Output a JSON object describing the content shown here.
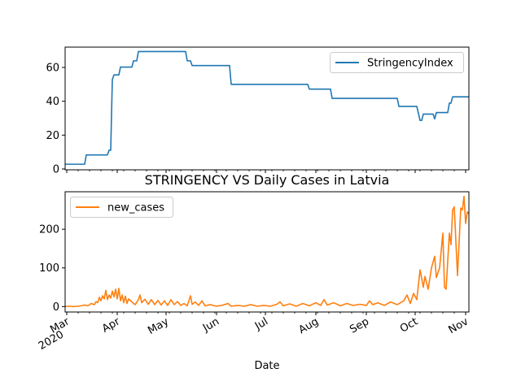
{
  "chart_data": [
    {
      "type": "line",
      "title": "",
      "xlabel": "",
      "ylabel": "",
      "xlim": [
        "2020-02-29",
        "2020-11-03"
      ],
      "ylim": [
        -0.5,
        72
      ],
      "yticks": [
        0,
        20,
        40,
        60
      ],
      "grid": false,
      "legend": "top-right",
      "series": [
        {
          "name": "StringencyIndex",
          "color": "#1f77b4",
          "points": [
            [
              "2020-02-29",
              2.8
            ],
            [
              "2020-03-12",
              2.8
            ],
            [
              "2020-03-13",
              8.3
            ],
            [
              "2020-03-26",
              8.3
            ],
            [
              "2020-03-27",
              11.1
            ],
            [
              "2020-03-28",
              11.1
            ],
            [
              "2020-03-29",
              52.8
            ],
            [
              "2020-03-30",
              55.6
            ],
            [
              "2020-04-02",
              55.6
            ],
            [
              "2020-04-03",
              60.2
            ],
            [
              "2020-04-10",
              60.2
            ],
            [
              "2020-04-11",
              63.9
            ],
            [
              "2020-04-13",
              63.9
            ],
            [
              "2020-04-14",
              69.4
            ],
            [
              "2020-05-13",
              69.4
            ],
            [
              "2020-05-14",
              63.9
            ],
            [
              "2020-05-16",
              63.9
            ],
            [
              "2020-05-17",
              61.1
            ],
            [
              "2020-06-09",
              61.1
            ],
            [
              "2020-06-10",
              50.0
            ],
            [
              "2020-07-27",
              50.0
            ],
            [
              "2020-07-28",
              47.2
            ],
            [
              "2020-08-10",
              47.2
            ],
            [
              "2020-08-11",
              41.7
            ],
            [
              "2020-09-20",
              41.7
            ],
            [
              "2020-09-21",
              37.0
            ],
            [
              "2020-10-02",
              37.0
            ],
            [
              "2020-10-04",
              28.7
            ],
            [
              "2020-10-05",
              28.7
            ],
            [
              "2020-10-06",
              32.4
            ],
            [
              "2020-10-12",
              32.4
            ],
            [
              "2020-10-13",
              29.6
            ],
            [
              "2020-10-14",
              33.3
            ],
            [
              "2020-10-21",
              33.3
            ],
            [
              "2020-10-22",
              38.9
            ],
            [
              "2020-10-23",
              38.9
            ],
            [
              "2020-10-24",
              42.6
            ],
            [
              "2020-11-03",
              42.6
            ]
          ]
        }
      ]
    },
    {
      "type": "line",
      "title": "STRINGENCY VS Daily Cases in Latvia",
      "xlabel": "Date",
      "ylabel": "",
      "xlim": [
        "2020-02-29",
        "2020-11-03"
      ],
      "ylim": [
        -14,
        297
      ],
      "yticks": [
        0,
        100,
        200
      ],
      "xticks": [
        {
          "date": "2020-03-01",
          "label": "Mar",
          "sub": "2020"
        },
        {
          "date": "2020-04-01",
          "label": "Apr"
        },
        {
          "date": "2020-05-01",
          "label": "May"
        },
        {
          "date": "2020-06-01",
          "label": "Jun"
        },
        {
          "date": "2020-07-01",
          "label": "Jul"
        },
        {
          "date": "2020-08-01",
          "label": "Aug"
        },
        {
          "date": "2020-09-01",
          "label": "Sep"
        },
        {
          "date": "2020-10-01",
          "label": "Oct"
        },
        {
          "date": "2020-11-01",
          "label": "Nov"
        }
      ],
      "grid": false,
      "legend": "top-left",
      "series": [
        {
          "name": "new_cases",
          "color": "#ff7f0e",
          "points": [
            [
              "2020-02-29",
              0
            ],
            [
              "2020-03-02",
              1
            ],
            [
              "2020-03-05",
              0
            ],
            [
              "2020-03-08",
              1
            ],
            [
              "2020-03-10",
              2
            ],
            [
              "2020-03-12",
              4
            ],
            [
              "2020-03-14",
              2
            ],
            [
              "2020-03-16",
              8
            ],
            [
              "2020-03-18",
              5
            ],
            [
              "2020-03-19",
              13
            ],
            [
              "2020-03-20",
              10
            ],
            [
              "2020-03-21",
              24
            ],
            [
              "2020-03-22",
              15
            ],
            [
              "2020-03-23",
              28
            ],
            [
              "2020-03-24",
              20
            ],
            [
              "2020-03-25",
              42
            ],
            [
              "2020-03-26",
              18
            ],
            [
              "2020-03-27",
              30
            ],
            [
              "2020-03-28",
              22
            ],
            [
              "2020-03-29",
              40
            ],
            [
              "2020-03-30",
              25
            ],
            [
              "2020-03-31",
              45
            ],
            [
              "2020-04-01",
              20
            ],
            [
              "2020-04-02",
              47
            ],
            [
              "2020-04-03",
              15
            ],
            [
              "2020-04-04",
              30
            ],
            [
              "2020-04-05",
              10
            ],
            [
              "2020-04-06",
              27
            ],
            [
              "2020-04-07",
              8
            ],
            [
              "2020-04-08",
              20
            ],
            [
              "2020-04-10",
              12
            ],
            [
              "2020-04-12",
              5
            ],
            [
              "2020-04-14",
              18
            ],
            [
              "2020-04-15",
              30
            ],
            [
              "2020-04-16",
              10
            ],
            [
              "2020-04-18",
              19
            ],
            [
              "2020-04-20",
              6
            ],
            [
              "2020-04-22",
              18
            ],
            [
              "2020-04-24",
              5
            ],
            [
              "2020-04-26",
              16
            ],
            [
              "2020-04-28",
              4
            ],
            [
              "2020-04-30",
              15
            ],
            [
              "2020-05-02",
              3
            ],
            [
              "2020-05-04",
              18
            ],
            [
              "2020-05-06",
              5
            ],
            [
              "2020-05-08",
              13
            ],
            [
              "2020-05-10",
              3
            ],
            [
              "2020-05-12",
              8
            ],
            [
              "2020-05-14",
              2
            ],
            [
              "2020-05-16",
              28
            ],
            [
              "2020-05-17",
              6
            ],
            [
              "2020-05-19",
              12
            ],
            [
              "2020-05-21",
              3
            ],
            [
              "2020-05-23",
              15
            ],
            [
              "2020-05-25",
              2
            ],
            [
              "2020-05-28",
              5
            ],
            [
              "2020-06-01",
              1
            ],
            [
              "2020-06-05",
              4
            ],
            [
              "2020-06-08",
              8
            ],
            [
              "2020-06-10",
              1
            ],
            [
              "2020-06-14",
              3
            ],
            [
              "2020-06-18",
              1
            ],
            [
              "2020-06-22",
              5
            ],
            [
              "2020-06-26",
              1
            ],
            [
              "2020-06-30",
              3
            ],
            [
              "2020-07-04",
              1
            ],
            [
              "2020-07-08",
              6
            ],
            [
              "2020-07-10",
              12
            ],
            [
              "2020-07-12",
              2
            ],
            [
              "2020-07-16",
              7
            ],
            [
              "2020-07-20",
              1
            ],
            [
              "2020-07-24",
              8
            ],
            [
              "2020-07-28",
              2
            ],
            [
              "2020-08-01",
              10
            ],
            [
              "2020-08-04",
              3
            ],
            [
              "2020-08-06",
              18
            ],
            [
              "2020-08-08",
              4
            ],
            [
              "2020-08-12",
              10
            ],
            [
              "2020-08-16",
              2
            ],
            [
              "2020-08-20",
              8
            ],
            [
              "2020-08-24",
              3
            ],
            [
              "2020-08-28",
              6
            ],
            [
              "2020-09-01",
              3
            ],
            [
              "2020-09-03",
              15
            ],
            [
              "2020-09-05",
              5
            ],
            [
              "2020-09-08",
              10
            ],
            [
              "2020-09-12",
              3
            ],
            [
              "2020-09-16",
              12
            ],
            [
              "2020-09-20",
              5
            ],
            [
              "2020-09-24",
              15
            ],
            [
              "2020-09-26",
              30
            ],
            [
              "2020-09-28",
              8
            ],
            [
              "2020-09-30",
              34
            ],
            [
              "2020-10-02",
              18
            ],
            [
              "2020-10-04",
              95
            ],
            [
              "2020-10-06",
              50
            ],
            [
              "2020-10-07",
              78
            ],
            [
              "2020-10-09",
              45
            ],
            [
              "2020-10-11",
              100
            ],
            [
              "2020-10-13",
              130
            ],
            [
              "2020-10-14",
              75
            ],
            [
              "2020-10-16",
              100
            ],
            [
              "2020-10-18",
              190
            ],
            [
              "2020-10-19",
              50
            ],
            [
              "2020-10-20",
              45
            ],
            [
              "2020-10-22",
              190
            ],
            [
              "2020-10-23",
              160
            ],
            [
              "2020-10-24",
              250
            ],
            [
              "2020-10-25",
              258
            ],
            [
              "2020-10-27",
              80
            ],
            [
              "2020-10-29",
              255
            ],
            [
              "2020-10-30",
              250
            ],
            [
              "2020-10-31",
              285
            ],
            [
              "2020-11-01",
              215
            ],
            [
              "2020-11-02",
              245
            ],
            [
              "2020-11-03",
              240
            ]
          ]
        }
      ]
    }
  ]
}
